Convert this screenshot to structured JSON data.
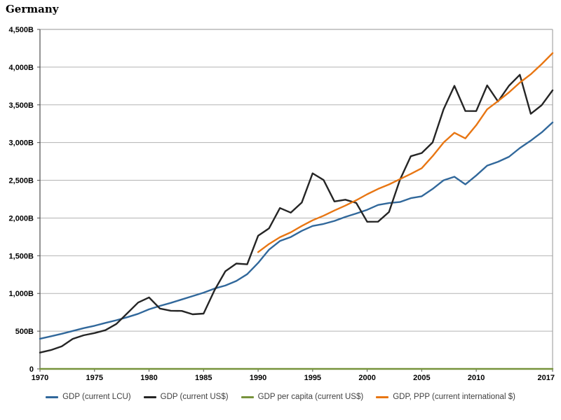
{
  "title": "Germany",
  "colors": {
    "blue": "#31689B",
    "black": "#252525",
    "olive": "#77933C",
    "orange": "#E87613",
    "grid": "#B3B3B3",
    "border": "#969696",
    "axis": "#4D4D4D",
    "tick_text": "#000000",
    "legend_text": "#404040",
    "background": "#FFFFFF"
  },
  "axes": {
    "y": {
      "min": 0,
      "max": 4500,
      "step": 500,
      "ticks": [
        {
          "value": 0,
          "label": "0"
        },
        {
          "value": 500,
          "label": "500B"
        },
        {
          "value": 1000,
          "label": "1,000B"
        },
        {
          "value": 1500,
          "label": "1,500B"
        },
        {
          "value": 2000,
          "label": "2,000B"
        },
        {
          "value": 2500,
          "label": "2,500B"
        },
        {
          "value": 3000,
          "label": "3,000B"
        },
        {
          "value": 3500,
          "label": "3,500B"
        },
        {
          "value": 4000,
          "label": "4,000B"
        },
        {
          "value": 4500,
          "label": "4,500B"
        }
      ]
    },
    "x": {
      "min": 1970,
      "max": 2017,
      "ticks": [
        {
          "value": 1970,
          "label": "1970"
        },
        {
          "value": 1975,
          "label": "1975"
        },
        {
          "value": 1980,
          "label": "1980"
        },
        {
          "value": 1985,
          "label": "1985"
        },
        {
          "value": 1990,
          "label": "1990"
        },
        {
          "value": 1995,
          "label": "1995"
        },
        {
          "value": 2000,
          "label": "2000"
        },
        {
          "value": 2005,
          "label": "2005"
        },
        {
          "value": 2010,
          "label": "2010"
        },
        {
          "value": 2017,
          "label": "2017"
        }
      ]
    }
  },
  "legend_position": "bottom-center",
  "chart_data": {
    "type": "line",
    "title": "Germany",
    "xlabel": "",
    "ylabel": "",
    "grid": "horizontal-only",
    "xlim": [
      1970,
      2017
    ],
    "ylim": [
      0,
      4500
    ],
    "y_unit": "billions",
    "x": [
      1970,
      1971,
      1972,
      1973,
      1974,
      1975,
      1976,
      1977,
      1978,
      1979,
      1980,
      1981,
      1982,
      1983,
      1984,
      1985,
      1986,
      1987,
      1988,
      1989,
      1990,
      1991,
      1992,
      1993,
      1994,
      1995,
      1996,
      1997,
      1998,
      1999,
      2000,
      2001,
      2002,
      2003,
      2004,
      2005,
      2006,
      2007,
      2008,
      2009,
      2010,
      2011,
      2012,
      2013,
      2014,
      2015,
      2016,
      2017
    ],
    "series": [
      {
        "name": "GDP (current LCU)",
        "color": "#31689B",
        "unit": "billions LCU",
        "plot_divisor": 1,
        "values": [
          400,
          432,
          466,
          503,
          540,
          572,
          610,
          645,
          685,
          730,
          790,
          835,
          875,
          920,
          965,
          1010,
          1065,
          1105,
          1165,
          1255,
          1405,
          1580,
          1695,
          1748,
          1830,
          1895,
          1922,
          1961,
          2014,
          2060,
          2109,
          2173,
          2198,
          2212,
          2263,
          2288,
          2385,
          2500,
          2547,
          2446,
          2564,
          2694,
          2745,
          2811,
          2927,
          3026,
          3134,
          3267
        ]
      },
      {
        "name": "GDP (current US$)",
        "color": "#252525",
        "unit": "billions US$",
        "plot_divisor": 1,
        "values": [
          216,
          250,
          300,
          398,
          445,
          475,
          513,
          596,
          737,
          880,
          947,
          800,
          771,
          768,
          724,
          733,
          1043,
          1294,
          1396,
          1386,
          1765,
          1862,
          2132,
          2071,
          2205,
          2592,
          2504,
          2219,
          2243,
          2200,
          1950,
          1951,
          2079,
          2506,
          2819,
          2861,
          3002,
          3440,
          3752,
          3418,
          3417,
          3758,
          3544,
          3753,
          3899,
          3381,
          3495,
          3693
        ]
      },
      {
        "name": "GDP per capita (current US$)",
        "color": "#77933C",
        "unit": "US$ per person",
        "plot_divisor": 1000000000,
        "note": "per-capita dollar values are negligible on the billions axis, so this line renders flat along zero",
        "values": [
          2760,
          3180,
          3800,
          5040,
          5640,
          6040,
          6530,
          7600,
          9410,
          11230,
          12090,
          10210,
          9850,
          9830,
          9290,
          9430,
          13420,
          16660,
          17870,
          17620,
          22230,
          23270,
          26450,
          25510,
          27090,
          31720,
          30570,
          27060,
          27360,
          26800,
          23720,
          23700,
          25200,
          30370,
          34170,
          34680,
          36440,
          41800,
          45710,
          41730,
          41770,
          45940,
          44080,
          46560,
          48130,
          41390,
          42470,
          44660
        ]
      },
      {
        "name": "GDP, PPP (current international $)",
        "color": "#E87613",
        "unit": "billions international $",
        "plot_divisor": 1,
        "start_year": 1990,
        "values": [
          null,
          null,
          null,
          null,
          null,
          null,
          null,
          null,
          null,
          null,
          null,
          null,
          null,
          null,
          null,
          null,
          null,
          null,
          null,
          null,
          1548,
          1655,
          1745,
          1810,
          1895,
          1970,
          2030,
          2100,
          2165,
          2235,
          2315,
          2385,
          2445,
          2515,
          2585,
          2660,
          2820,
          3000,
          3130,
          3055,
          3230,
          3440,
          3550,
          3665,
          3795,
          3905,
          4040,
          4185
        ]
      }
    ]
  }
}
